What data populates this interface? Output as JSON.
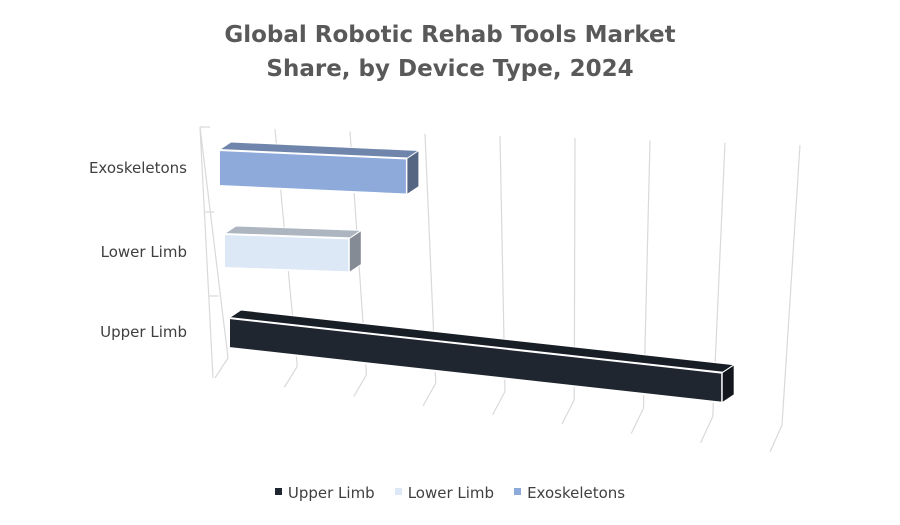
{
  "chart_data": {
    "type": "bar",
    "orientation": "horizontal",
    "style": "3d",
    "title": "Global Robotic Rehab Tools Market Share, by Device Type, 2024",
    "title_lines": [
      "Global Robotic Rehab Tools Market",
      "Share, by Device Type, 2024"
    ],
    "categories": [
      "Upper Limb",
      "Lower Limb",
      "Exoskeletons"
    ],
    "values": [
      63,
      16,
      24
    ],
    "xlim": [
      0,
      70
    ],
    "grid": true,
    "legend": "bottom",
    "series": [
      {
        "name": "Upper Limb",
        "value": 63,
        "color": "#1f2630"
      },
      {
        "name": "Lower Limb",
        "value": 16,
        "color": "#dde8f6"
      },
      {
        "name": "Exoskeletons",
        "value": 24,
        "color": "#8eaadb"
      }
    ]
  }
}
